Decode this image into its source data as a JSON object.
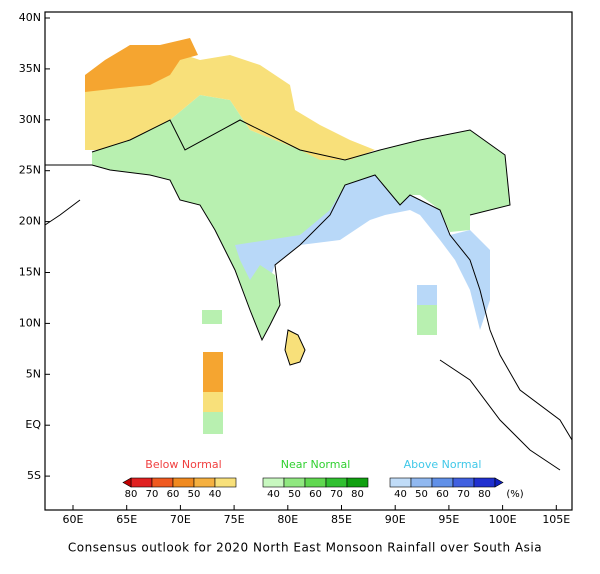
{
  "map": {
    "caption": "Consensus outlook for 2020 North East Monsoon Rainfall over South Asia",
    "lat_labels": [
      "40N",
      "35N",
      "30N",
      "25N",
      "20N",
      "15N",
      "10N",
      "5N",
      "EQ",
      "5S"
    ],
    "lon_labels": [
      "60E",
      "65E",
      "70E",
      "75E",
      "80E",
      "85E",
      "90E",
      "95E",
      "100E",
      "105E"
    ],
    "legend": {
      "groups": [
        {
          "title": "Below Normal",
          "labels": [
            "80",
            "70",
            "60",
            "50",
            "40"
          ]
        },
        {
          "title": "Near Normal",
          "labels": [
            "40",
            "50",
            "60",
            "70",
            "80"
          ]
        },
        {
          "title": "Above Normal",
          "labels": [
            "40",
            "50",
            "60",
            "70",
            "80"
          ]
        }
      ],
      "unit": "(%)"
    }
  }
}
